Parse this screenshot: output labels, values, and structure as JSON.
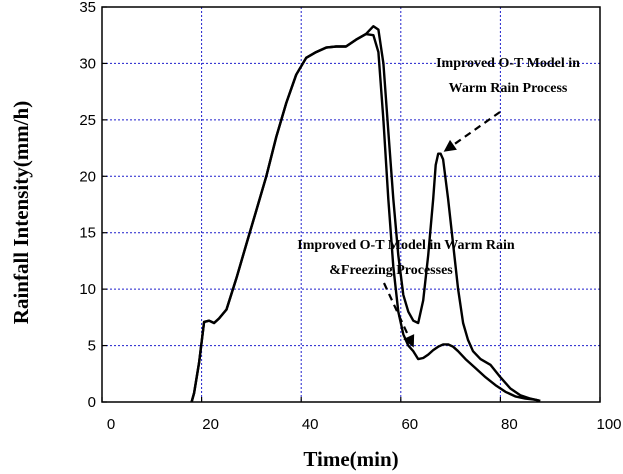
{
  "chart_data": {
    "type": "line",
    "xlabel": "Time(min)",
    "ylabel": "Rainfall Intensity(mm/h)",
    "xlim": [
      0,
      100
    ],
    "ylim": [
      0,
      35
    ],
    "xticks": [
      0,
      20,
      40,
      60,
      80,
      100
    ],
    "yticks": [
      0,
      5,
      10,
      15,
      20,
      25,
      30,
      35
    ],
    "grid": true,
    "series": [
      {
        "x": [
          18,
          18.5,
          19.5,
          20.5,
          21.5,
          22.5,
          23.5,
          25,
          27,
          29,
          31,
          33,
          35,
          37,
          39,
          41,
          43,
          45,
          47,
          49,
          51,
          53,
          54.5,
          55.5,
          56.5,
          57.5,
          58.5,
          59.5,
          60.5,
          61.5,
          62.5,
          63.5,
          64.5,
          65.5,
          66.5,
          67.5,
          68.5,
          69.5,
          70.5,
          71.5,
          73,
          75,
          77,
          79,
          81,
          83,
          85,
          87,
          88
        ],
        "values": [
          0,
          0.8,
          3.5,
          7.1,
          7.2,
          7.0,
          7.4,
          8.2,
          11,
          14,
          17,
          20,
          23.5,
          26.5,
          29,
          30.5,
          31,
          31.4,
          31.5,
          31.5,
          32.1,
          32.6,
          32.5,
          31,
          25,
          18,
          12,
          8,
          6,
          5,
          4.5,
          3.8,
          3.9,
          4.2,
          4.6,
          4.9,
          5.1,
          5.1,
          4.9,
          4.5,
          3.8,
          3.0,
          2.2,
          1.5,
          0.9,
          0.5,
          0.3,
          0.2,
          0.1
        ]
      },
      {
        "x": [
          18,
          18.5,
          19.5,
          20.5,
          21.5,
          22.5,
          23.5,
          25,
          27,
          29,
          31,
          33,
          35,
          37,
          39,
          41,
          43,
          45,
          47,
          49,
          51,
          53,
          54.5,
          55.5,
          56.5,
          57.5,
          58.5,
          59.5,
          60.5,
          61.5,
          62.5,
          63.5,
          64.5,
          65.5,
          66.5,
          67,
          67.5,
          68,
          68.5,
          69.5,
          70.5,
          71.5,
          72.5,
          73.5,
          74.5,
          76,
          78,
          80,
          82,
          84,
          86,
          88
        ],
        "values": [
          0,
          0.8,
          3.5,
          7.1,
          7.2,
          7.0,
          7.4,
          8.2,
          11,
          14,
          17,
          20,
          23.5,
          26.5,
          29,
          30.5,
          31,
          31.4,
          31.5,
          31.5,
          32.1,
          32.6,
          33.3,
          33.0,
          30,
          24,
          18,
          13,
          9.5,
          8,
          7.2,
          7.0,
          9,
          13,
          18,
          21,
          22,
          22,
          21.5,
          18,
          14,
          10,
          7,
          5.5,
          4.5,
          3.8,
          3.3,
          2.2,
          1.2,
          0.6,
          0.3,
          0.1
        ]
      }
    ],
    "annotations": [
      {
        "line1": "Improved O-T Model in",
        "line2": "Warm Rain Process",
        "arrow_to": [
          68,
          22
        ]
      },
      {
        "line1": "Improved O-T Model in Warm Rain",
        "line2": "&Freezing Processes",
        "arrow_to": [
          63,
          5
        ]
      }
    ]
  }
}
